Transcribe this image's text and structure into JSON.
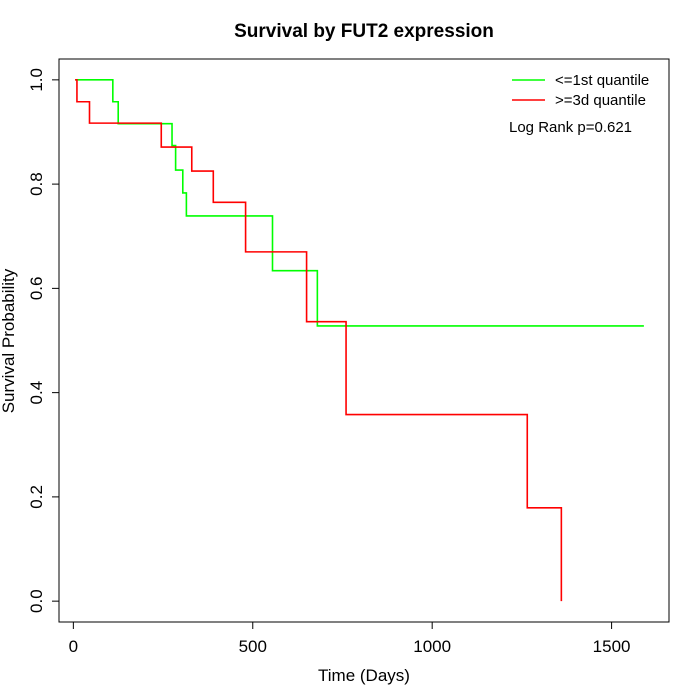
{
  "chart_data": {
    "type": "line",
    "title": "Survival by FUT2 expression",
    "xlabel": "Time (Days)",
    "ylabel": "Survival Probability",
    "xlim": [
      -40,
      1660
    ],
    "ylim": [
      -0.04,
      1.04
    ],
    "x_ticks": [
      0,
      500,
      1000,
      1500
    ],
    "x_tick_labels": [
      "0",
      "500",
      "1000",
      "1500"
    ],
    "y_ticks": [
      0.0,
      0.2,
      0.4,
      0.6,
      0.8,
      1.0
    ],
    "y_tick_labels": [
      "0.0",
      "0.2",
      "0.4",
      "0.6",
      "0.8",
      "1.0"
    ],
    "grid": false,
    "legend_position": "top-right",
    "annotation": "Log Rank p=0.621",
    "series": [
      {
        "name": "<=1st quantile",
        "color": "#00ff00",
        "step": true,
        "x": [
          5,
          110,
          125,
          275,
          285,
          305,
          315,
          555,
          680,
          1590
        ],
        "y": [
          1.0,
          0.958,
          0.916,
          0.874,
          0.827,
          0.783,
          0.739,
          0.634,
          0.528,
          0.528
        ]
      },
      {
        "name": ">=3d quantile",
        "color": "#ff0000",
        "step": true,
        "x": [
          5,
          10,
          45,
          245,
          330,
          390,
          480,
          650,
          760,
          1265,
          1360,
          1360
        ],
        "y": [
          1.0,
          0.958,
          0.917,
          0.871,
          0.825,
          0.765,
          0.67,
          0.536,
          0.358,
          0.179,
          0.179,
          0.0
        ]
      }
    ]
  }
}
